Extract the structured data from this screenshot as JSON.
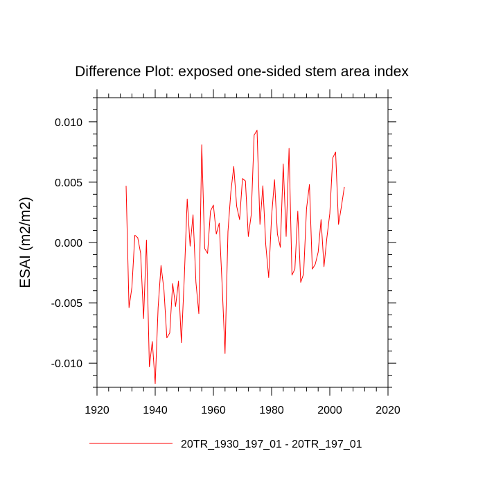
{
  "chart_data": {
    "type": "line",
    "title": "Difference Plot: exposed one-sided stem area index",
    "xlabel": "",
    "ylabel": "ESAI  (m2/m2)",
    "xlim": [
      1920,
      2020
    ],
    "ylim": [
      -0.012,
      0.012
    ],
    "x_ticks": [
      1920,
      1940,
      1960,
      1980,
      2000,
      2020
    ],
    "x_tick_labels": [
      "1920",
      "1940",
      "1960",
      "1980",
      "2000",
      "2020"
    ],
    "y_ticks": [
      -0.01,
      -0.005,
      0.0,
      0.005,
      0.01
    ],
    "y_tick_labels": [
      "-0.010",
      "-0.005",
      "0.000",
      "0.005",
      "0.010"
    ],
    "legend": {
      "placement": "bottom-center",
      "label": "20TR_1930_197_01 - 20TR_197_01"
    },
    "series": [
      {
        "name": "20TR_1930_197_01 - 20TR_197_01",
        "color": "#ff0000",
        "x": [
          1930,
          1931,
          1932,
          1933,
          1934,
          1935,
          1936,
          1937,
          1938,
          1939,
          1940,
          1941,
          1942,
          1943,
          1944,
          1945,
          1946,
          1947,
          1948,
          1949,
          1950,
          1951,
          1952,
          1953,
          1954,
          1955,
          1956,
          1957,
          1958,
          1959,
          1960,
          1961,
          1962,
          1963,
          1964,
          1965,
          1966,
          1967,
          1968,
          1969,
          1970,
          1971,
          1972,
          1973,
          1974,
          1975,
          1976,
          1977,
          1978,
          1979,
          1980,
          1981,
          1982,
          1983,
          1984,
          1985,
          1986,
          1987,
          1988,
          1989,
          1990,
          1991,
          1992,
          1993,
          1994,
          1995,
          1996,
          1997,
          1998,
          1999,
          2000,
          2001,
          2002,
          2003,
          2004,
          2005
        ],
        "values": [
          0.0047,
          -0.0054,
          -0.0037,
          0.0006,
          0.0004,
          -0.0009,
          -0.0063,
          0.0002,
          -0.0103,
          -0.0082,
          -0.0117,
          -0.0054,
          -0.0019,
          -0.0039,
          -0.0079,
          -0.0075,
          -0.0034,
          -0.0053,
          -0.0032,
          -0.0083,
          -0.0029,
          0.0036,
          -0.0003,
          0.0023,
          -0.0033,
          -0.0059,
          0.0081,
          -0.0005,
          -0.0009,
          0.0026,
          0.0031,
          0.0007,
          0.0016,
          -0.0035,
          -0.0092,
          0.0009,
          0.0042,
          0.0063,
          0.003,
          0.0019,
          0.0053,
          0.0051,
          0.0005,
          0.0023,
          0.0089,
          0.0093,
          0.0015,
          0.0047,
          -0.0002,
          -0.0029,
          0.0022,
          0.0052,
          0.0007,
          -0.0004,
          0.0065,
          0.0005,
          0.0078,
          -0.0027,
          -0.0022,
          0.0026,
          -0.0033,
          -0.0026,
          0.0028,
          0.0048,
          -0.0022,
          -0.0018,
          -0.0008,
          0.0019,
          -0.002,
          0.0004,
          0.0024,
          0.007,
          0.0075,
          0.0015,
          0.003,
          0.0046
        ]
      }
    ]
  }
}
